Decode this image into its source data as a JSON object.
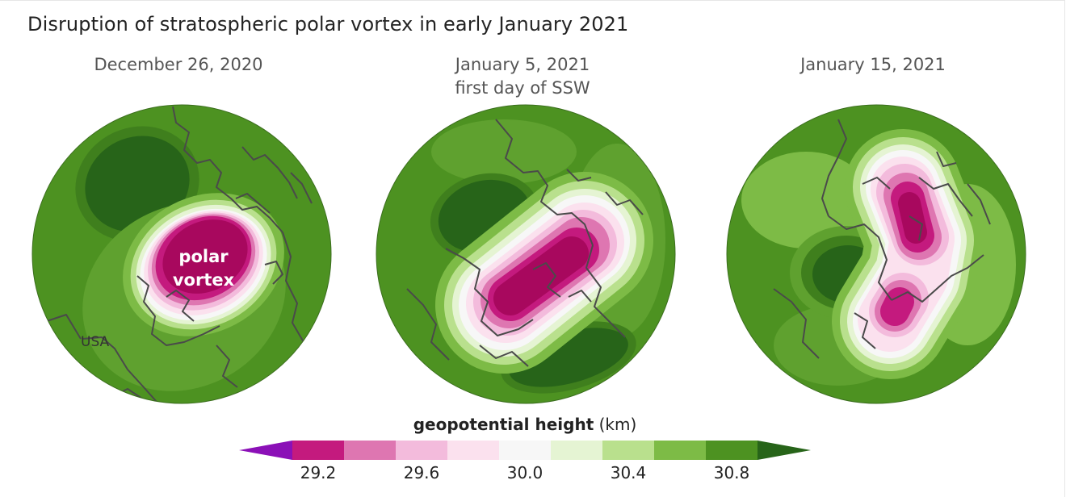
{
  "title": "Disruption of stratospheric polar vortex in early January 2021",
  "maps": [
    {
      "date": "December 26, 2020",
      "subtitle": "",
      "labels": {
        "vortex_line1": "polar",
        "vortex_line2": "vortex",
        "country": "USA"
      }
    },
    {
      "date": "January 5, 2021",
      "subtitle": "first day of SSW"
    },
    {
      "date": "January 15, 2021",
      "subtitle": ""
    }
  ],
  "legend": {
    "title_bold": "geopotential height",
    "title_unit": "(km)",
    "ticks": [
      "29.2",
      "29.6",
      "30.0",
      "30.4",
      "30.8"
    ],
    "colors": [
      "#8b10b7",
      "#c41a7e",
      "#de76b1",
      "#f3bbdc",
      "#fbe1ee",
      "#f7f7f7",
      "#e5f4d3",
      "#b9e08d",
      "#7dbb46",
      "#4d9221",
      "#276419"
    ]
  },
  "palette": {
    "outer": "#4d9221",
    "dark_green": "#276419",
    "mid_green": "#7dbb46",
    "light_green": "#b9e08d",
    "pale_green": "#e5f4d3",
    "white": "#f7f7f7",
    "pale_pink": "#fbe1ee",
    "light_pink": "#f3bbdc",
    "mid_pink": "#de76b1",
    "magenta": "#c41a7e",
    "deep_magenta": "#a8085e",
    "coast": "#4a4a4a"
  }
}
